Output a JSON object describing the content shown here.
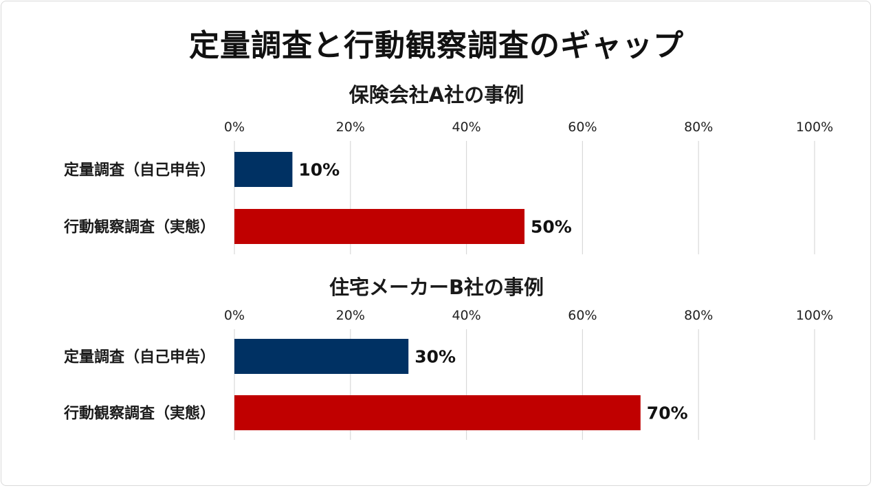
{
  "title": "定量調査と行動観察調査のギャップ",
  "colors": {
    "series_1": "#003163",
    "series_2": "#c00000",
    "grid": "#d9d9d9"
  },
  "chart_data": [
    {
      "type": "bar",
      "orientation": "horizontal",
      "title": "保険会社A社の事例",
      "categories": [
        "定量調査（自己申告）",
        "行動観察調査（実態）"
      ],
      "values": [
        10,
        50
      ],
      "value_labels": [
        "10%",
        "50%"
      ],
      "xlim": [
        0,
        100
      ],
      "tick_labels": [
        "0%",
        "20%",
        "40%",
        "60%",
        "80%",
        "100%"
      ],
      "axis_position": "top",
      "grid": true
    },
    {
      "type": "bar",
      "orientation": "horizontal",
      "title": "住宅メーカーB社の事例",
      "categories": [
        "定量調査（自己申告）",
        "行動観察調査（実態）"
      ],
      "values": [
        30,
        70
      ],
      "value_labels": [
        "30%",
        "70%"
      ],
      "xlim": [
        0,
        100
      ],
      "tick_labels": [
        "0%",
        "20%",
        "40%",
        "60%",
        "80%",
        "100%"
      ],
      "axis_position": "top",
      "grid": true
    }
  ]
}
